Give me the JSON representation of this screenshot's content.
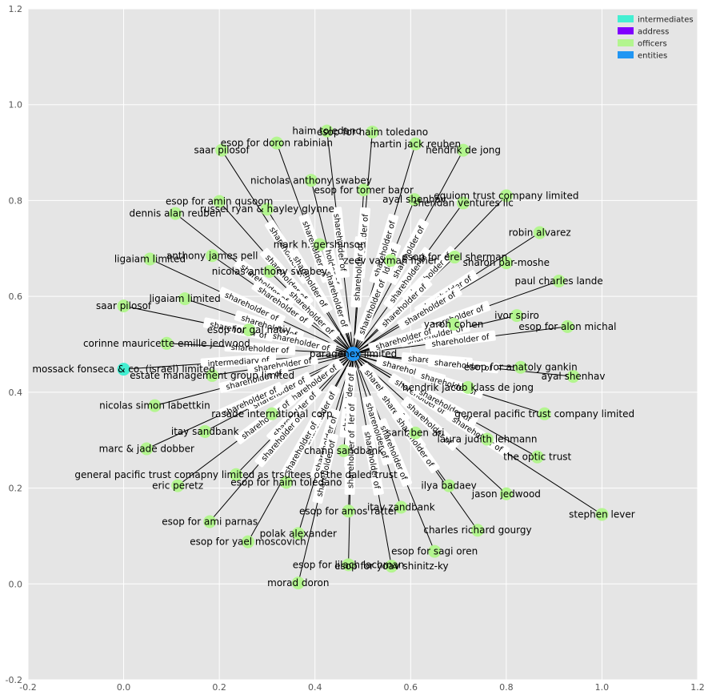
{
  "chart_data": {
    "type": "network",
    "xlim": [
      -0.2,
      1.2
    ],
    "ylim": [
      -0.2,
      1.2
    ],
    "x_ticks": [
      "-0.2",
      "0.0",
      "0.2",
      "0.4",
      "0.6",
      "0.8",
      "1.0",
      "1.2"
    ],
    "y_ticks": [
      "-0.2",
      "0.0",
      "0.2",
      "0.4",
      "0.6",
      "0.8",
      "1.0",
      "1.2"
    ],
    "grid": true,
    "legend_position": "top-right",
    "colors": {
      "intermediates": "#44efd2",
      "address": "#8000ff",
      "officers": "#b3f58f",
      "entities": "#2196f3",
      "background": "#e5e5e5",
      "grid": "#ffffff",
      "edge": "#000000"
    },
    "legend": [
      {
        "label": "intermediates",
        "category": "intermediates"
      },
      {
        "label": "address",
        "category": "address"
      },
      {
        "label": "officers",
        "category": "officers"
      },
      {
        "label": "entities",
        "category": "entities"
      }
    ],
    "hub": {
      "label": "paragenex limited",
      "x": 0.48,
      "y": 0.48,
      "category": "entities"
    },
    "nodes": [
      {
        "label": "haim toledano",
        "x": 0.425,
        "y": 0.945,
        "category": "officers",
        "edge": "shareholder of"
      },
      {
        "label": "esop for haim toledano",
        "x": 0.52,
        "y": 0.943,
        "category": "officers",
        "edge": "shareholder of"
      },
      {
        "label": "esop for doron rabinian",
        "x": 0.32,
        "y": 0.92,
        "category": "officers",
        "edge": "shareholder of"
      },
      {
        "label": "martin jack reuben",
        "x": 0.61,
        "y": 0.918,
        "category": "officers",
        "edge": "shareholder of"
      },
      {
        "label": "hendrik de jong",
        "x": 0.71,
        "y": 0.905,
        "category": "officers",
        "edge": "shareholder of"
      },
      {
        "label": "saar pilosof",
        "x": 0.205,
        "y": 0.905,
        "category": "officers",
        "edge": "shareholder of"
      },
      {
        "label": "nicholas anthony swabey",
        "x": 0.392,
        "y": 0.842,
        "category": "officers",
        "edge": "holder of"
      },
      {
        "label": "esop for tomer baror",
        "x": 0.502,
        "y": 0.822,
        "category": "officers",
        "edge": "shareholder of"
      },
      {
        "label": "ayal shenhav",
        "x": 0.608,
        "y": 0.802,
        "category": "officers",
        "edge": "shareholder of"
      },
      {
        "label": "equiom trust company limited",
        "x": 0.8,
        "y": 0.81,
        "category": "officers",
        "edge": "shareholder of"
      },
      {
        "label": "sheridan ventures llc",
        "x": 0.71,
        "y": 0.795,
        "category": "officers",
        "edge": "shareholder of"
      },
      {
        "label": "esop for amin qusoom",
        "x": 0.2,
        "y": 0.798,
        "category": "officers",
        "edge": "shareholder of"
      },
      {
        "label": "russel ryan & hayley glynne",
        "x": 0.3,
        "y": 0.782,
        "category": "officers",
        "edge": "shareholder of"
      },
      {
        "label": "dennis alan reuben",
        "x": 0.108,
        "y": 0.773,
        "category": "officers",
        "edge": "shareholder of"
      },
      {
        "label": "robin alvarez",
        "x": 0.87,
        "y": 0.733,
        "category": "officers",
        "edge": "shareholder of"
      },
      {
        "label": "mark h. gershinson",
        "x": 0.41,
        "y": 0.708,
        "category": "officers",
        "edge": "shareholder of"
      },
      {
        "label": "anthony james pell",
        "x": 0.185,
        "y": 0.685,
        "category": "officers",
        "edge": "shareholder of"
      },
      {
        "label": "esop for erel sherman",
        "x": 0.692,
        "y": 0.682,
        "category": "officers",
        "edge": "shareholder of"
      },
      {
        "label": "ligaiam limited",
        "x": 0.055,
        "y": 0.678,
        "category": "officers",
        "edge": "shareholder of"
      },
      {
        "label": "zeev vaxman fisher",
        "x": 0.558,
        "y": 0.675,
        "category": "officers",
        "edge": "shareholder of"
      },
      {
        "label": "sharon bar-moshe",
        "x": 0.8,
        "y": 0.67,
        "category": "officers",
        "edge": "shareholder of"
      },
      {
        "label": "nicolas anthony swabey",
        "x": 0.305,
        "y": 0.652,
        "category": "officers",
        "edge": "shareholder of"
      },
      {
        "label": "paul charles lande",
        "x": 0.91,
        "y": 0.632,
        "category": "officers",
        "edge": "shareholder of"
      },
      {
        "label": "ligaiam limited",
        "x": 0.128,
        "y": 0.595,
        "category": "officers",
        "edge": "shareholder of"
      },
      {
        "label": "saar pilosof",
        "x": 0.0,
        "y": 0.58,
        "category": "officers",
        "edge": "shareholder of"
      },
      {
        "label": "ivor spiro",
        "x": 0.822,
        "y": 0.56,
        "category": "officers",
        "edge": "shareholder of"
      },
      {
        "label": "yaron cohen",
        "x": 0.69,
        "y": 0.542,
        "category": "officers",
        "edge": "shareholder of"
      },
      {
        "label": "esop for alon michal",
        "x": 0.928,
        "y": 0.537,
        "category": "officers",
        "edge": "shareholder of"
      },
      {
        "label": "esop for gal natiy",
        "x": 0.262,
        "y": 0.53,
        "category": "officers",
        "edge": "shareholder of"
      },
      {
        "label": "corinne mauricette emille jedwood",
        "x": 0.09,
        "y": 0.502,
        "category": "officers",
        "edge": "shareholder of"
      },
      {
        "label": "mossack fonseca & co. (israel) limited",
        "x": 0.0,
        "y": 0.448,
        "category": "intermediates",
        "edge": "intermediary of"
      },
      {
        "label": "esop for anatoly gankin",
        "x": 0.83,
        "y": 0.452,
        "category": "officers",
        "edge": "shareholder of"
      },
      {
        "label": "estate management group limited",
        "x": 0.185,
        "y": 0.435,
        "category": "officers",
        "edge": "shareholder of"
      },
      {
        "label": "ayal shenhav",
        "x": 0.94,
        "y": 0.433,
        "category": "officers",
        "edge": "shareholder of"
      },
      {
        "label": "hendrik jacob klass de jong",
        "x": 0.72,
        "y": 0.41,
        "category": "officers",
        "edge": "shareholder of"
      },
      {
        "label": "nicolas simon labettkin",
        "x": 0.065,
        "y": 0.372,
        "category": "officers",
        "edge": "shareholder of"
      },
      {
        "label": "rasade international corp",
        "x": 0.31,
        "y": 0.355,
        "category": "officers",
        "edge": "shareholder of"
      },
      {
        "label": "general pacific trust company limited",
        "x": 0.88,
        "y": 0.355,
        "category": "officers",
        "edge": "shareholder of"
      },
      {
        "label": "itay sandbank",
        "x": 0.17,
        "y": 0.318,
        "category": "officers",
        "edge": "shareholder of"
      },
      {
        "label": "sarit ben ari",
        "x": 0.61,
        "y": 0.315,
        "category": "officers",
        "edge": "shareholder of"
      },
      {
        "label": "laura judith lehmann",
        "x": 0.76,
        "y": 0.302,
        "category": "officers",
        "edge": "shareholder of"
      },
      {
        "label": "marc & jade dobber",
        "x": 0.048,
        "y": 0.282,
        "category": "officers",
        "edge": "shareholder of"
      },
      {
        "label": "chann sandbank",
        "x": 0.46,
        "y": 0.278,
        "category": "officers",
        "edge": "shareholder of"
      },
      {
        "label": "the optic trust",
        "x": 0.865,
        "y": 0.265,
        "category": "officers",
        "edge": "shareholder of"
      },
      {
        "label": "general pacific trust comapny limited as trsutees of the daled trust",
        "x": 0.235,
        "y": 0.228,
        "category": "officers",
        "edge": "shareholder of"
      },
      {
        "label": "esop for haim toledano",
        "x": 0.34,
        "y": 0.212,
        "category": "officers",
        "edge": "shareholder of"
      },
      {
        "label": "eric peretz",
        "x": 0.113,
        "y": 0.205,
        "category": "officers",
        "edge": "shareholder of"
      },
      {
        "label": "ilya badaev",
        "x": 0.68,
        "y": 0.205,
        "category": "officers",
        "edge": "shareholder of"
      },
      {
        "label": "jason jedwood",
        "x": 0.8,
        "y": 0.188,
        "category": "officers",
        "edge": "shareholder of"
      },
      {
        "label": "itay zandbank",
        "x": 0.58,
        "y": 0.16,
        "category": "officers",
        "edge": "shareholder of"
      },
      {
        "label": "esop for amos ratter",
        "x": 0.47,
        "y": 0.152,
        "category": "officers",
        "edge": "shareholder of"
      },
      {
        "label": "stephen lever",
        "x": 1.0,
        "y": 0.145,
        "category": "officers",
        "edge": "shareholder of"
      },
      {
        "label": "esop for ami parnas",
        "x": 0.18,
        "y": 0.13,
        "category": "officers",
        "edge": "shareholder of"
      },
      {
        "label": "charles richard gourgy",
        "x": 0.74,
        "y": 0.112,
        "category": "officers",
        "edge": "shareholder of"
      },
      {
        "label": "polak alexander",
        "x": 0.365,
        "y": 0.105,
        "category": "officers",
        "edge": "shareholder of"
      },
      {
        "label": "esop for yael moscovich",
        "x": 0.26,
        "y": 0.088,
        "category": "officers",
        "edge": "shareholder of"
      },
      {
        "label": "esop for sagi oren",
        "x": 0.65,
        "y": 0.068,
        "category": "officers",
        "edge": "shareholder of"
      },
      {
        "label": "esop for lilach lachman",
        "x": 0.47,
        "y": 0.04,
        "category": "officers",
        "edge": "shareholder of"
      },
      {
        "label": "esop for yoav shinitz-ky",
        "x": 0.56,
        "y": 0.037,
        "category": "officers",
        "edge": "shareholder of"
      },
      {
        "label": "morad doron",
        "x": 0.365,
        "y": 0.002,
        "category": "officers",
        "edge": "shareholder of"
      }
    ]
  }
}
